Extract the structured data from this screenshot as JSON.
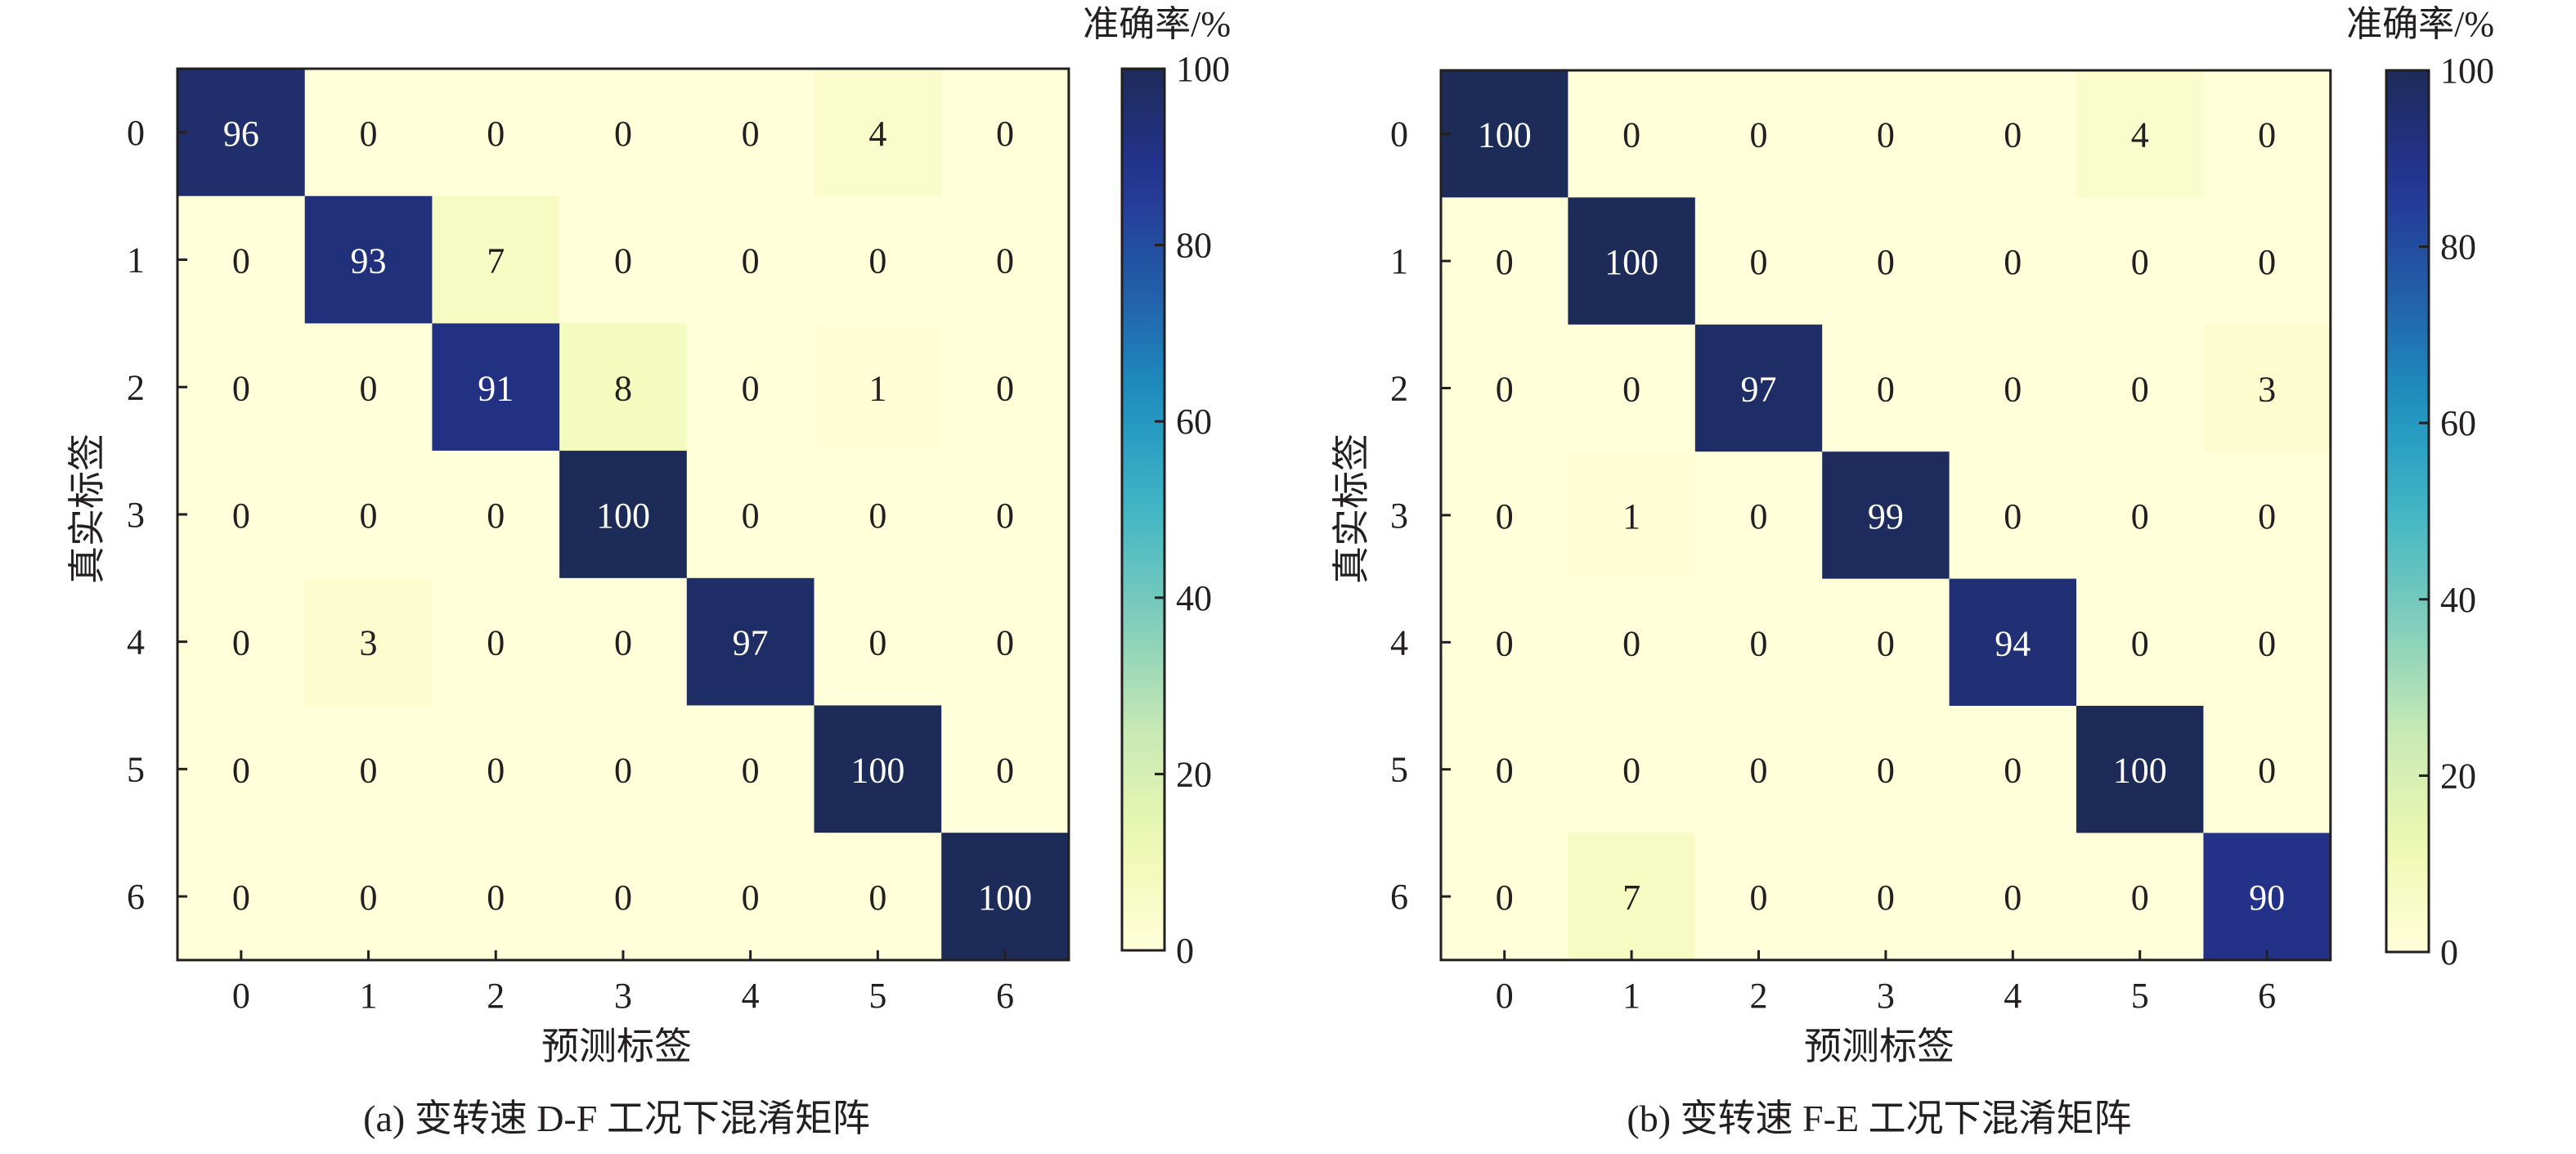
{
  "chart_data": [
    {
      "type": "heatmap",
      "caption": "(a) 变转速 D-F 工况下混淆矩阵",
      "xlabel": "预测标签",
      "ylabel": "真实标签",
      "colorbar_label": "准确率/%",
      "x_categories": [
        "0",
        "1",
        "2",
        "3",
        "4",
        "5",
        "6"
      ],
      "y_categories": [
        "0",
        "1",
        "2",
        "3",
        "4",
        "5",
        "6"
      ],
      "values": [
        [
          96,
          0,
          0,
          0,
          0,
          4,
          0
        ],
        [
          0,
          93,
          7,
          0,
          0,
          0,
          0
        ],
        [
          0,
          0,
          91,
          8,
          0,
          1,
          0
        ],
        [
          0,
          0,
          0,
          100,
          0,
          0,
          0
        ],
        [
          0,
          3,
          0,
          0,
          97,
          0,
          0
        ],
        [
          0,
          0,
          0,
          0,
          0,
          100,
          0
        ],
        [
          0,
          0,
          0,
          0,
          0,
          0,
          100
        ]
      ],
      "colorbar_range": [
        0,
        100
      ],
      "colorbar_ticks": [
        "0",
        "20",
        "40",
        "60",
        "80",
        "100"
      ],
      "colormap": "YlGnBu"
    },
    {
      "type": "heatmap",
      "caption": "(b) 变转速 F-E 工况下混淆矩阵",
      "xlabel": "预测标签",
      "ylabel": "真实标签",
      "colorbar_label": "准确率/%",
      "x_categories": [
        "0",
        "1",
        "2",
        "3",
        "4",
        "5",
        "6"
      ],
      "y_categories": [
        "0",
        "1",
        "2",
        "3",
        "4",
        "5",
        "6"
      ],
      "values": [
        [
          100,
          0,
          0,
          0,
          0,
          4,
          0
        ],
        [
          0,
          100,
          0,
          0,
          0,
          0,
          0
        ],
        [
          0,
          0,
          97,
          0,
          0,
          0,
          3
        ],
        [
          0,
          1,
          0,
          99,
          0,
          0,
          0
        ],
        [
          0,
          0,
          0,
          0,
          94,
          0,
          0
        ],
        [
          0,
          0,
          0,
          0,
          0,
          100,
          0
        ],
        [
          0,
          7,
          0,
          0,
          0,
          0,
          90
        ]
      ],
      "colorbar_range": [
        0,
        100
      ],
      "colorbar_ticks": [
        "0",
        "20",
        "40",
        "60",
        "80",
        "100"
      ],
      "colormap": "YlGnBu"
    }
  ]
}
